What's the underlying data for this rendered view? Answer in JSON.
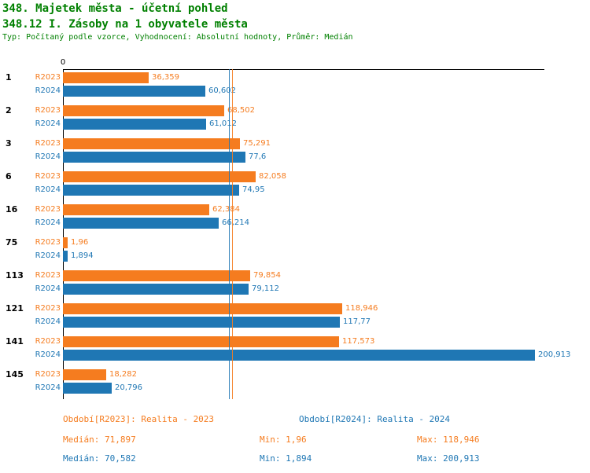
{
  "header": {
    "title_line1": "348. Majetek města - účetní pohled",
    "title_line2": "348.12 I. Zásoby na 1 obyvatele města",
    "subtitle": "Typ: Počítaný podle vzorce, Vyhodnocení: Absolutní hodnoty, Průměr: Medián"
  },
  "colors": {
    "r2023_orange": "#F57C1F",
    "r2024_blue": "#1F77B4",
    "title_green": "#008000",
    "axis_black": "#000000"
  },
  "chart_data": {
    "type": "bar",
    "orientation": "horizontal",
    "title": "348.12 I. Zásoby na 1 obyvatele města",
    "xlabel": "",
    "ylabel": "",
    "x_axis": {
      "zero_label": "0",
      "min": 0,
      "max": 200.913
    },
    "grid": false,
    "legend_position": "bottom",
    "categories": [
      "1",
      "2",
      "3",
      "6",
      "16",
      "75",
      "113",
      "121",
      "141",
      "145"
    ],
    "series": [
      {
        "name": "R2023",
        "color": "#F57C1F",
        "values": [
          36.359,
          68.502,
          75.291,
          82.058,
          62.384,
          1.96,
          79.854,
          118.946,
          117.573,
          18.282
        ],
        "labels": [
          "36,359",
          "68,502",
          "75,291",
          "82,058",
          "62,384",
          "1,96",
          "79,854",
          "118,946",
          "117,573",
          "18,282"
        ],
        "median": 71.897,
        "min": 1.96,
        "max": 118.946
      },
      {
        "name": "R2024",
        "color": "#1F77B4",
        "values": [
          60.602,
          61.012,
          77.6,
          74.95,
          66.214,
          1.894,
          79.112,
          117.77,
          200.913,
          20.796
        ],
        "labels": [
          "60,602",
          "61,012",
          "77,6",
          "74,95",
          "66,214",
          "1,894",
          "79,112",
          "117,77",
          "200,913",
          "20,796"
        ],
        "median": 70.582,
        "min": 1.894,
        "max": 200.913
      }
    ],
    "median_lines": [
      {
        "series": "R2023",
        "value": 71.897,
        "color": "#F57C1F"
      },
      {
        "series": "R2024",
        "value": 70.582,
        "color": "#1F77B4"
      }
    ]
  },
  "footer": {
    "legend": [
      {
        "label": "Období[R2023]: Realita - 2023",
        "color": "#F57C1F"
      },
      {
        "label": "Období[R2024]: Realita - 2024",
        "color": "#1F77B4"
      }
    ],
    "stats": [
      {
        "median": "Medián: 71,897",
        "min": "Min: 1,96",
        "max": "Max: 118,946",
        "color": "#F57C1F"
      },
      {
        "median": "Medián: 70,582",
        "min": "Min: 1,894",
        "max": "Max: 200,913",
        "color": "#1F77B4"
      }
    ]
  }
}
